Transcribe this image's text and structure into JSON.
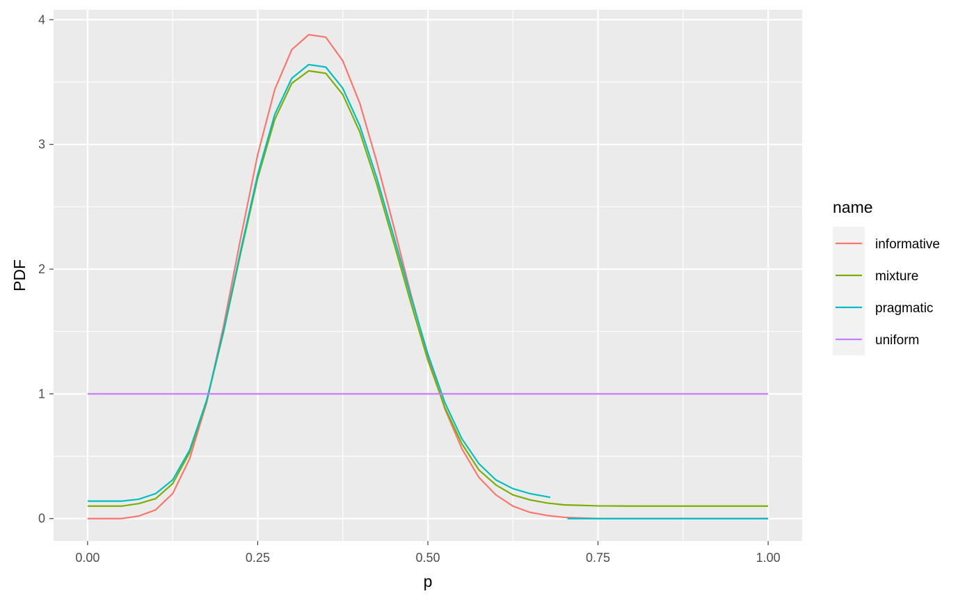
{
  "chart_data": {
    "type": "line",
    "xlabel": "p",
    "ylabel": "PDF",
    "xlim": [
      -0.05,
      1.05
    ],
    "ylim": [
      -0.18,
      4.08
    ],
    "x_ticks": [
      0,
      0.25,
      0.5,
      0.75,
      1
    ],
    "x_tick_labels": [
      "0.00",
      "0.25",
      "0.50",
      "0.75",
      "1.00"
    ],
    "y_ticks": [
      0,
      1,
      2,
      3,
      4
    ],
    "y_tick_labels": [
      "0",
      "1",
      "2",
      "3",
      "4"
    ],
    "grid": true,
    "legend": {
      "title": "name",
      "position": "right"
    },
    "series": [
      {
        "name": "informative",
        "color": "#F8766D",
        "segments": [
          [
            [
              0.0,
              0.0
            ],
            [
              0.05,
              0.0
            ],
            [
              0.075,
              0.02
            ],
            [
              0.1,
              0.07
            ],
            [
              0.125,
              0.2
            ],
            [
              0.15,
              0.48
            ],
            [
              0.175,
              0.93
            ],
            [
              0.2,
              1.55
            ],
            [
              0.225,
              2.25
            ],
            [
              0.25,
              2.92
            ],
            [
              0.275,
              3.44
            ],
            [
              0.3,
              3.76
            ],
            [
              0.325,
              3.88
            ],
            [
              0.35,
              3.86
            ],
            [
              0.375,
              3.67
            ],
            [
              0.4,
              3.33
            ],
            [
              0.425,
              2.86
            ],
            [
              0.45,
              2.34
            ],
            [
              0.475,
              1.8
            ],
            [
              0.5,
              1.3
            ],
            [
              0.525,
              0.88
            ],
            [
              0.55,
              0.56
            ],
            [
              0.575,
              0.33
            ],
            [
              0.6,
              0.19
            ],
            [
              0.625,
              0.1
            ],
            [
              0.65,
              0.05
            ],
            [
              0.675,
              0.025
            ],
            [
              0.7,
              0.01
            ],
            [
              0.75,
              0.0
            ],
            [
              0.8,
              0.0
            ],
            [
              0.9,
              0.0
            ],
            [
              1.0,
              0.0
            ]
          ]
        ]
      },
      {
        "name": "mixture",
        "color": "#7CAE00",
        "segments": [
          [
            [
              0.0,
              0.1
            ],
            [
              0.05,
              0.1
            ],
            [
              0.075,
              0.12
            ],
            [
              0.1,
              0.16
            ],
            [
              0.125,
              0.28
            ],
            [
              0.15,
              0.53
            ],
            [
              0.175,
              0.94
            ],
            [
              0.2,
              1.5
            ],
            [
              0.225,
              2.13
            ],
            [
              0.25,
              2.73
            ],
            [
              0.275,
              3.2
            ],
            [
              0.3,
              3.49
            ],
            [
              0.325,
              3.59
            ],
            [
              0.35,
              3.57
            ],
            [
              0.375,
              3.4
            ],
            [
              0.4,
              3.1
            ],
            [
              0.425,
              2.68
            ],
            [
              0.45,
              2.21
            ],
            [
              0.475,
              1.73
            ],
            [
              0.5,
              1.27
            ],
            [
              0.525,
              0.89
            ],
            [
              0.55,
              0.6
            ],
            [
              0.575,
              0.39
            ],
            [
              0.6,
              0.27
            ],
            [
              0.625,
              0.19
            ],
            [
              0.65,
              0.15
            ],
            [
              0.675,
              0.125
            ],
            [
              0.7,
              0.11
            ],
            [
              0.75,
              0.102
            ],
            [
              0.8,
              0.1
            ],
            [
              0.9,
              0.1
            ],
            [
              1.0,
              0.1
            ]
          ]
        ]
      },
      {
        "name": "pragmatic",
        "color": "#00BFC4",
        "segments": [
          [
            [
              0.0,
              0.14
            ],
            [
              0.05,
              0.14
            ],
            [
              0.075,
              0.155
            ],
            [
              0.1,
              0.2
            ],
            [
              0.125,
              0.31
            ],
            [
              0.15,
              0.55
            ],
            [
              0.175,
              0.95
            ],
            [
              0.2,
              1.51
            ],
            [
              0.225,
              2.15
            ],
            [
              0.25,
              2.76
            ],
            [
              0.275,
              3.24
            ],
            [
              0.3,
              3.53
            ],
            [
              0.325,
              3.64
            ],
            [
              0.35,
              3.62
            ],
            [
              0.375,
              3.45
            ],
            [
              0.4,
              3.15
            ],
            [
              0.425,
              2.73
            ],
            [
              0.45,
              2.26
            ],
            [
              0.475,
              1.78
            ],
            [
              0.5,
              1.32
            ],
            [
              0.525,
              0.93
            ],
            [
              0.55,
              0.64
            ],
            [
              0.575,
              0.44
            ],
            [
              0.6,
              0.31
            ],
            [
              0.625,
              0.24
            ],
            [
              0.65,
              0.2
            ],
            [
              0.68,
              0.17
            ]
          ],
          [
            [
              0.705,
              0.0
            ],
            [
              0.8,
              0.0
            ],
            [
              0.9,
              0.0
            ],
            [
              1.0,
              0.0
            ]
          ]
        ]
      },
      {
        "name": "uniform",
        "color": "#C77CFF",
        "segments": [
          [
            [
              0.0,
              1.0
            ],
            [
              1.0,
              1.0
            ]
          ]
        ]
      }
    ]
  }
}
